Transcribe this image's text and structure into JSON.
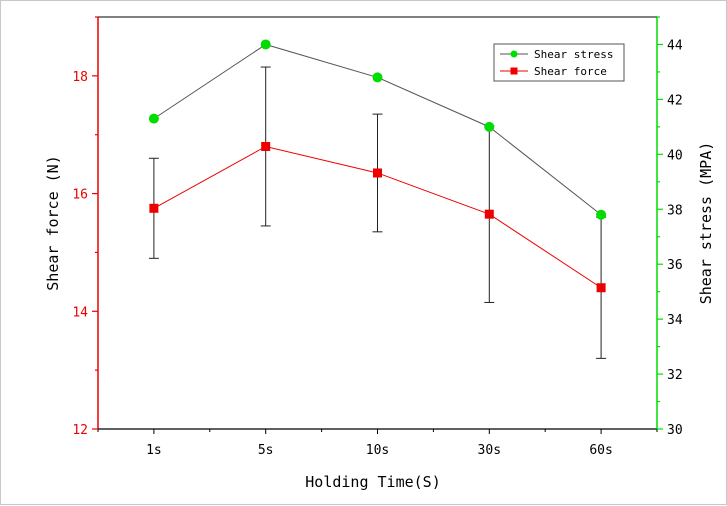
{
  "chart_data": {
    "type": "line",
    "categories": [
      "1s",
      "5s",
      "10s",
      "30s",
      "60s"
    ],
    "xlabel": "Holding Time(S)",
    "series": [
      {
        "name": "Shear stress",
        "axis": "right",
        "color": "#00dd00",
        "marker": "circle",
        "values": [
          41.3,
          44.0,
          42.8,
          41.0,
          37.8
        ]
      },
      {
        "name": "Shear force",
        "axis": "left",
        "color": "#ee0000",
        "marker": "square",
        "values": [
          15.75,
          16.8,
          16.35,
          15.65,
          14.4
        ],
        "error": [
          0.85,
          1.35,
          1.0,
          1.5,
          1.2
        ]
      }
    ],
    "y_left": {
      "label": "Shear force (N)",
      "ylim": [
        12,
        19
      ],
      "ticks": [
        12,
        14,
        16,
        18
      ],
      "color": "#ee0000"
    },
    "y_right": {
      "label": "Shear stress (MPA)",
      "ylim": [
        30,
        45
      ],
      "ticks": [
        30,
        32,
        34,
        36,
        38,
        40,
        42,
        44
      ],
      "color": "#00dd00"
    },
    "legend_position": "top-right",
    "grid": false
  }
}
